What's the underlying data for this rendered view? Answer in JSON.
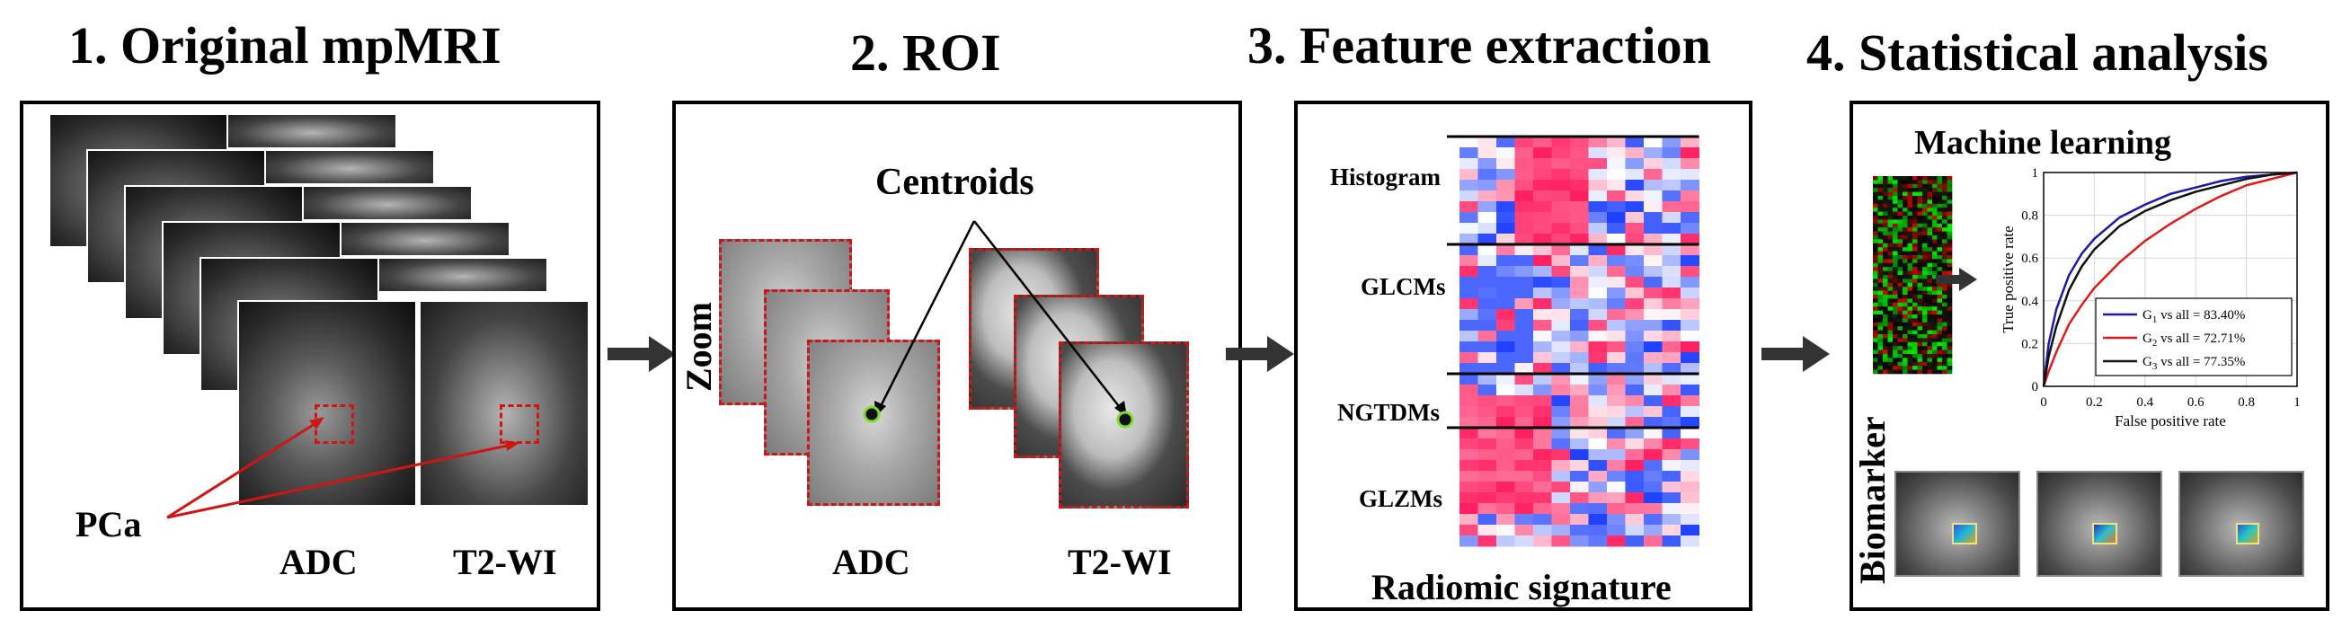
{
  "steps": {
    "s1": "1. Original mpMRI",
    "s2": "2. ROI",
    "s3": "3. Feature extraction",
    "s4": "4. Statistical analysis"
  },
  "panel1": {
    "label_pca": "PCa",
    "label_adc": "ADC",
    "label_t2": "T2-WI"
  },
  "panel2": {
    "label_zoom": "Zoom",
    "label_centroids": "Centroids",
    "label_adc": "ADC",
    "label_t2": "T2-WI"
  },
  "panel3": {
    "groups": [
      "Histogram",
      "GLCMs",
      "NGTDMs",
      "GLZMs"
    ],
    "caption": "Radiomic signature"
  },
  "panel4": {
    "title": "Machine learning",
    "side_label": "Biomarker",
    "chart_data": {
      "type": "line",
      "xlabel": "False positive rate",
      "ylabel": "True positive rate",
      "xlim": [
        0,
        1
      ],
      "ylim": [
        0,
        1
      ],
      "xticks": [
        "0",
        "0.2",
        "0.4",
        "0.6",
        "0.8",
        "1"
      ],
      "yticks": [
        "0",
        "0.2",
        "0.4",
        "0.6",
        "0.8",
        "1"
      ],
      "grid": true,
      "legend_position": "bottom-right",
      "series": [
        {
          "name": "G1 vs all = 83.40%",
          "color": "#1a1aa8",
          "x": [
            0,
            0.02,
            0.05,
            0.1,
            0.15,
            0.2,
            0.3,
            0.4,
            0.5,
            0.6,
            0.7,
            0.8,
            0.9,
            1
          ],
          "y": [
            0,
            0.2,
            0.36,
            0.52,
            0.62,
            0.69,
            0.79,
            0.85,
            0.9,
            0.93,
            0.96,
            0.98,
            0.99,
            1
          ]
        },
        {
          "name": "G2 vs all = 72.71%",
          "color": "#e01a1a",
          "x": [
            0,
            0.02,
            0.05,
            0.1,
            0.15,
            0.2,
            0.3,
            0.4,
            0.5,
            0.6,
            0.7,
            0.8,
            0.9,
            1
          ],
          "y": [
            0,
            0.07,
            0.16,
            0.29,
            0.38,
            0.46,
            0.58,
            0.68,
            0.76,
            0.83,
            0.89,
            0.94,
            0.97,
            1
          ]
        },
        {
          "name": "G3 vs all = 77.35%",
          "color": "#111111",
          "x": [
            0,
            0.02,
            0.05,
            0.1,
            0.15,
            0.2,
            0.3,
            0.4,
            0.5,
            0.6,
            0.7,
            0.8,
            0.9,
            1
          ],
          "y": [
            0,
            0.14,
            0.28,
            0.45,
            0.56,
            0.64,
            0.75,
            0.82,
            0.87,
            0.91,
            0.94,
            0.97,
            0.99,
            1
          ]
        }
      ]
    },
    "legend": [
      {
        "main": "G",
        "sub": "1",
        "rest": " vs all = 83.40%",
        "color": "#1a1aa8"
      },
      {
        "main": "G",
        "sub": "2",
        "rest": " vs all = 72.71%",
        "color": "#e01a1a"
      },
      {
        "main": "G",
        "sub": "3",
        "rest": " vs all = 77.35%",
        "color": "#111111"
      }
    ]
  }
}
